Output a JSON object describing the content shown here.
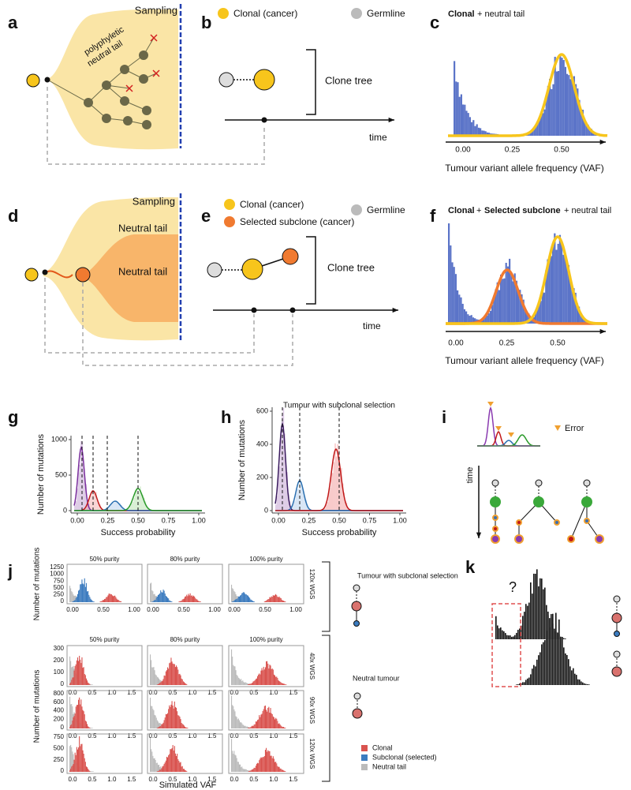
{
  "a": {
    "label": "a",
    "sampling": "Sampling",
    "tail_label": [
      "polyphyletic",
      "neutral tail"
    ]
  },
  "b": {
    "label": "b",
    "legend": [
      "Clonal (cancer)",
      "Germline"
    ],
    "tree": "Clone tree",
    "time": "time"
  },
  "c": {
    "label": "c",
    "title": [
      "Clonal",
      "+ neutral tail"
    ],
    "xticks": [
      "0.00",
      "0.25",
      "0.50"
    ],
    "xlabel": "Tumour variant allele frequency (VAF)"
  },
  "d": {
    "label": "d",
    "sampling": "Sampling",
    "tails": [
      "Neutral tail",
      "Neutral tail"
    ]
  },
  "e": {
    "label": "e",
    "legend": [
      "Clonal (cancer)",
      "Selected subclone (cancer)",
      "Germline"
    ],
    "tree": "Clone tree",
    "time": "time"
  },
  "f": {
    "label": "f",
    "title": [
      "Clonal",
      "+",
      "Selected subclone",
      "+ neutral tail"
    ],
    "xticks": [
      "0.00",
      "0.25",
      "0.50"
    ],
    "xlabel": "Tumour variant allele frequency (VAF)"
  },
  "g": {
    "label": "g",
    "ylabel": "Number of mutations",
    "yticks": [
      "0",
      "500",
      "1000"
    ],
    "xticks": [
      "0.00",
      "0.25",
      "0.50",
      "0.75",
      "1.00"
    ],
    "xlabel": "Success probability"
  },
  "h": {
    "label": "h",
    "title": "Tumour with subclonal selection",
    "ylabel": "Number of mutations",
    "yticks": [
      "0",
      "200",
      "400",
      "600"
    ],
    "xticks": [
      "0.00",
      "0.25",
      "0.50",
      "0.75",
      "1.00"
    ],
    "xlabel": "Success probability"
  },
  "i": {
    "label": "i",
    "legend": "Error",
    "time": "time"
  },
  "j": {
    "label": "j",
    "columns": [
      "50% purity",
      "80% purity",
      "100% purity"
    ],
    "top": {
      "row": "120x WGS",
      "yticks": [
        "0",
        "250",
        "500",
        "750",
        "1000",
        "1250"
      ],
      "xticks": [
        "0.00",
        "0.50",
        "1.00"
      ],
      "ylabel": "Number of mutations"
    },
    "bottom": {
      "rows": [
        {
          "name": "40x WGS",
          "yticks": [
            "0",
            "100",
            "200",
            "300"
          ]
        },
        {
          "name": "90x WGS",
          "yticks": [
            "0",
            "200",
            "400",
            "600",
            "800"
          ]
        },
        {
          "name": "120x WGS",
          "yticks": [
            "0",
            "250",
            "500",
            "750"
          ]
        }
      ],
      "xticks": [
        "0.0",
        "0.5",
        "1.0",
        "1.5"
      ],
      "ylabel": "Number of mutations",
      "xlabel": "Simulated VAF"
    },
    "legend": [
      "Clonal",
      "Subclonal (selected)",
      "Neutral tail"
    ],
    "groups": [
      "Tumour with subclonal selection",
      "Neutral tumour"
    ]
  },
  "k": {
    "label": "k",
    "question": "?"
  }
}
